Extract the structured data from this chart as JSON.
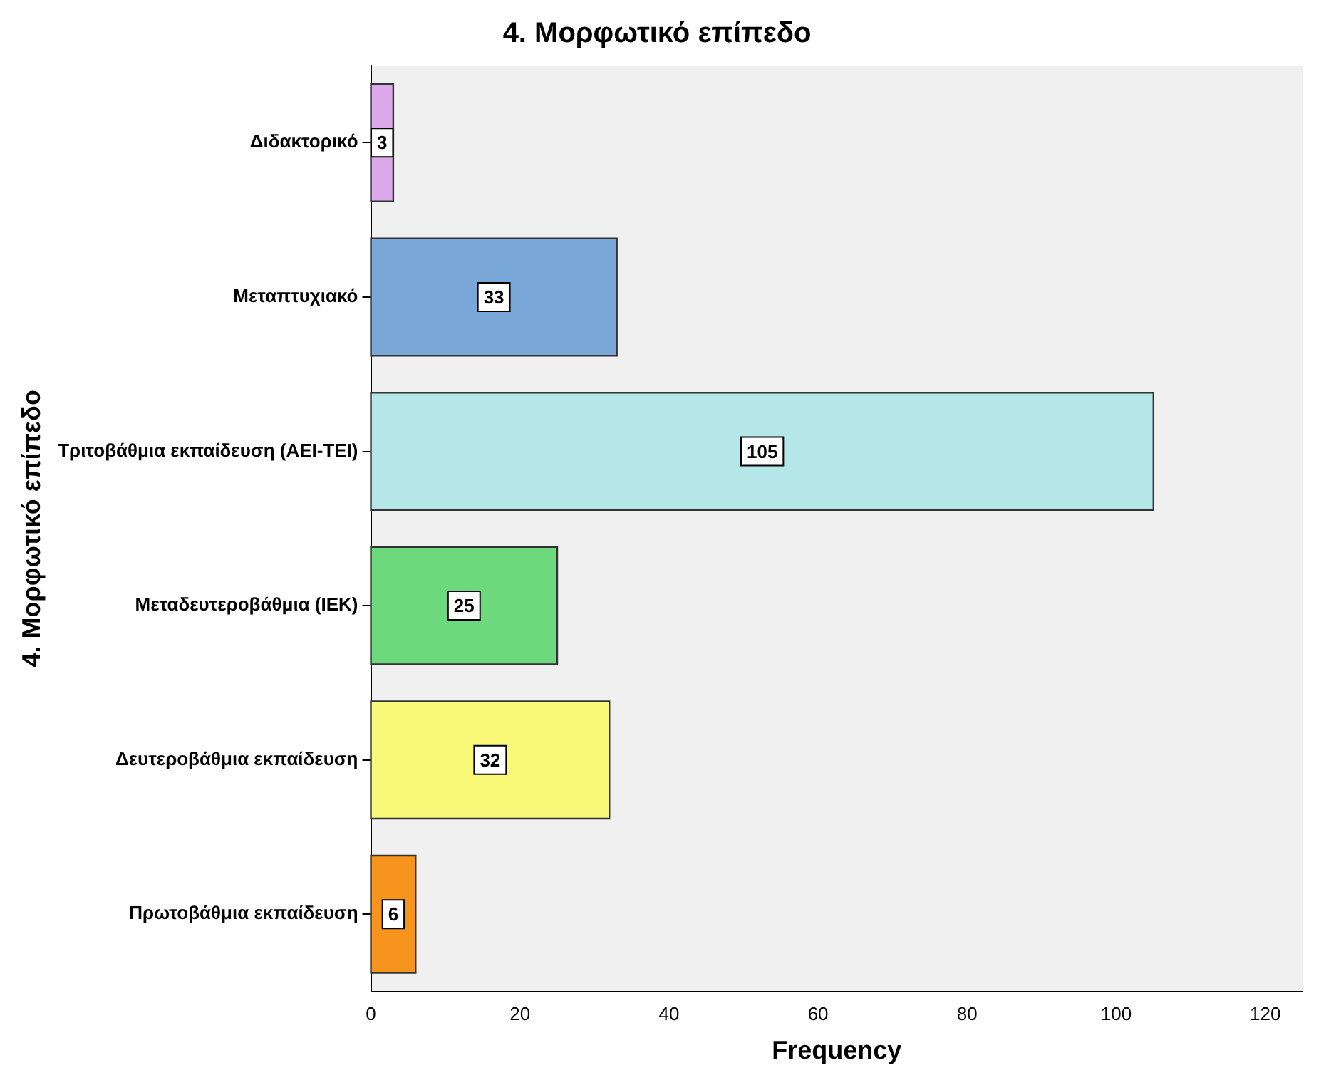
{
  "chart_data": {
    "type": "bar",
    "orientation": "horizontal",
    "title": "4. Μορφωτικό επίπεδο",
    "xlabel": "Frequency",
    "ylabel": "4. Μορφωτικό επίπεδο",
    "categories": [
      "Διδακτορικό",
      "Μεταπτυχιακό",
      "Τριτοβάθμια εκπαίδευση (ΑΕΙ-ΤΕΙ)",
      "Μεταδευτεροβάθμια (ΙΕΚ)",
      "Δευτεροβάθμια εκπαίδευση",
      "Πρωτοβάθμια εκπαίδευση"
    ],
    "values": [
      3,
      33,
      105,
      25,
      32,
      6
    ],
    "colors": [
      "#dba9e9",
      "#79a7d7",
      "#b5e6e8",
      "#6cd97d",
      "#f9f879",
      "#f7941e"
    ],
    "xlim": [
      0,
      125
    ],
    "xticks": [
      0,
      20,
      40,
      60,
      80,
      100,
      120
    ],
    "data_labels": true
  }
}
